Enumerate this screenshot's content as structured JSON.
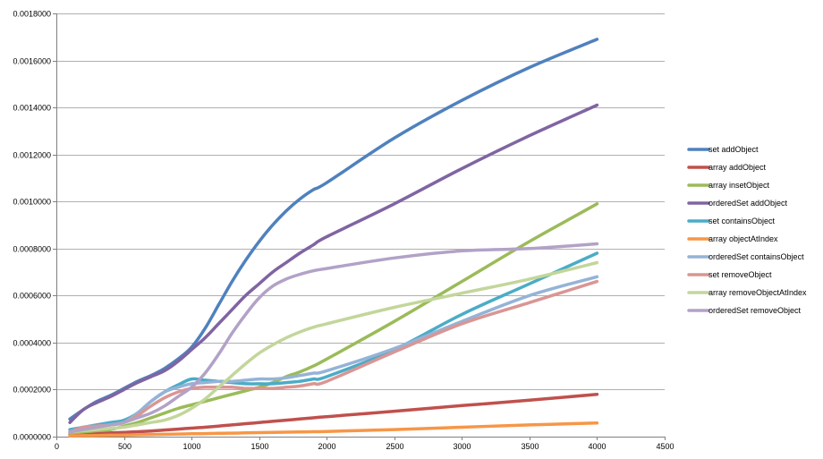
{
  "chart_data": {
    "type": "line",
    "title": "",
    "xlabel": "",
    "ylabel": "",
    "xlim": [
      0,
      4500
    ],
    "ylim": [
      0,
      0.0018
    ],
    "x_ticks": [
      0,
      500,
      1000,
      1500,
      2000,
      2500,
      3000,
      3500,
      4000,
      4500
    ],
    "x_tick_labels": [
      "0",
      "500",
      "1000",
      "1500",
      "2000",
      "2500",
      "3000",
      "3500",
      "4000",
      "4500"
    ],
    "y_ticks": [
      0,
      0.0002,
      0.0004,
      0.0006,
      0.0008,
      0.001,
      0.0012,
      0.0014,
      0.0016,
      0.0018
    ],
    "y_tick_labels": [
      "0.0000000",
      "0.0002000",
      "0.0004000",
      "0.0006000",
      "0.0008000",
      "0.0010000",
      "0.0012000",
      "0.0014000",
      "0.0016000",
      "0.0018000"
    ],
    "grid": "horizontal",
    "legend_position": "right",
    "x": [
      100,
      200,
      300,
      400,
      500,
      600,
      700,
      800,
      900,
      1000,
      1100,
      1200,
      1300,
      1400,
      1500,
      1600,
      1700,
      1800,
      1900,
      2000,
      2500,
      3000,
      3500,
      4000
    ],
    "series": [
      {
        "name": "set addObject",
        "color": "#4f81bd",
        "values": [
          7.5e-05,
          0.000115,
          0.00015,
          0.000175,
          0.000205,
          0.000235,
          0.00026,
          0.00029,
          0.00033,
          0.00038,
          0.00046,
          0.00056,
          0.00066,
          0.00075,
          0.00083,
          0.0009,
          0.00096,
          0.00101,
          0.00105,
          0.00108,
          0.00127,
          0.00143,
          0.00157,
          0.00169
        ]
      },
      {
        "name": "array addObject",
        "color": "#c0504d",
        "values": [
          1e-05,
          1.2e-05,
          1.4e-05,
          1.6e-05,
          1.8e-05,
          2.1e-05,
          2.4e-05,
          2.8e-05,
          3.2e-05,
          3.6e-05,
          4e-05,
          4.5e-05,
          5e-05,
          5.5e-05,
          6e-05,
          6.5e-05,
          7e-05,
          7.5e-05,
          8e-05,
          8.5e-05,
          0.000108,
          0.000132,
          0.000155,
          0.00018
        ]
      },
      {
        "name": "array insetObject",
        "color": "#9bbb59",
        "values": [
          1.5e-05,
          2e-05,
          2.5e-05,
          3e-05,
          4.5e-05,
          6e-05,
          8e-05,
          0.0001,
          0.00012,
          0.000135,
          0.00015,
          0.000165,
          0.00018,
          0.000195,
          0.00021,
          0.00023,
          0.000255,
          0.000275,
          0.0003,
          0.00033,
          0.00049,
          0.00066,
          0.00083,
          0.00099
        ]
      },
      {
        "name": "orderedSet addObject",
        "color": "#8064a2",
        "values": [
          6e-05,
          0.000115,
          0.000145,
          0.00017,
          0.0002,
          0.00023,
          0.000255,
          0.00028,
          0.00032,
          0.00037,
          0.00042,
          0.00048,
          0.00054,
          0.0006,
          0.00065,
          0.0007,
          0.00074,
          0.00078,
          0.000815,
          0.00085,
          0.00099,
          0.00114,
          0.00128,
          0.00141
        ]
      },
      {
        "name": "set containsObject",
        "color": "#4bacc6",
        "values": [
          3e-05,
          4e-05,
          5e-05,
          6e-05,
          7e-05,
          0.0001,
          0.00015,
          0.00019,
          0.00022,
          0.000245,
          0.00024,
          0.000235,
          0.00023,
          0.000225,
          0.000225,
          0.000225,
          0.00023,
          0.000235,
          0.000245,
          0.000255,
          0.00037,
          0.00052,
          0.00065,
          0.00078
        ]
      },
      {
        "name": "array objectAtIndex",
        "color": "#f79646",
        "values": [
          3e-06,
          4e-06,
          5e-06,
          6e-06,
          7e-06,
          8e-06,
          9e-06,
          1e-05,
          1.1e-05,
          1.2e-05,
          1.3e-05,
          1.4e-05,
          1.5e-05,
          1.6e-05,
          1.7e-05,
          1.8e-05,
          1.9e-05,
          2e-05,
          2.1e-05,
          2.2e-05,
          3e-05,
          4e-05,
          5e-05,
          5.8e-05
        ]
      },
      {
        "name": "orderedSet containsObject",
        "color": "#95b3d7",
        "values": [
          2e-05,
          4e-05,
          4.5e-05,
          5e-05,
          6e-05,
          0.0001,
          0.00015,
          0.00019,
          0.00021,
          0.000225,
          0.00023,
          0.000235,
          0.000235,
          0.00024,
          0.000245,
          0.000245,
          0.00025,
          0.00026,
          0.00027,
          0.00028,
          0.000375,
          0.00049,
          0.0006,
          0.00068
        ]
      },
      {
        "name": "set removeObject",
        "color": "#d99694",
        "values": [
          2e-05,
          4e-05,
          4.5e-05,
          5e-05,
          6e-05,
          9e-05,
          0.00013,
          0.000165,
          0.00019,
          0.000205,
          0.00021,
          0.00021,
          0.00021,
          0.000205,
          0.000205,
          0.000205,
          0.00021,
          0.000215,
          0.000225,
          0.000235,
          0.00036,
          0.00048,
          0.00057,
          0.00066
        ]
      },
      {
        "name": "array removeObjectAtIndex",
        "color": "#c3d69b",
        "values": [
          2e-05,
          2.5e-05,
          3e-05,
          3.5e-05,
          4e-05,
          5e-05,
          6e-05,
          7e-05,
          9e-05,
          0.00012,
          0.00016,
          0.00021,
          0.00026,
          0.00031,
          0.000355,
          0.00039,
          0.00042,
          0.000445,
          0.000465,
          0.00048,
          0.00055,
          0.00061,
          0.00067,
          0.00074
        ]
      },
      {
        "name": "orderedSet removeObject",
        "color": "#b2a2c7",
        "values": [
          2e-05,
          3e-05,
          4e-05,
          5e-05,
          6e-05,
          8e-05,
          0.0001,
          0.00013,
          0.00017,
          0.00021,
          0.00027,
          0.00035,
          0.00044,
          0.00052,
          0.00059,
          0.00064,
          0.00067,
          0.00069,
          0.000705,
          0.000715,
          0.00076,
          0.00079,
          0.0008,
          0.00082
        ]
      }
    ]
  }
}
